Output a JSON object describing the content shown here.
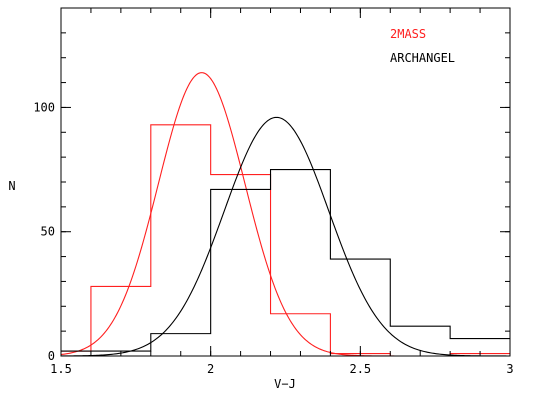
{
  "chart_data": {
    "type": "histogram",
    "xlabel": "V−J",
    "ylabel": "N",
    "xlim": [
      1.5,
      3.0
    ],
    "ylim": [
      0,
      140
    ],
    "x_ticks": [
      {
        "value": 1.5,
        "label": "1.5"
      },
      {
        "value": 2.0,
        "label": "2"
      },
      {
        "value": 2.5,
        "label": "2.5"
      },
      {
        "value": 3.0,
        "label": "3"
      }
    ],
    "y_ticks": [
      {
        "value": 0,
        "label": "0"
      },
      {
        "value": 50,
        "label": "50"
      },
      {
        "value": 100,
        "label": "100"
      }
    ],
    "legend_placement": "top-right",
    "series": [
      {
        "name": "2MASS",
        "color": "#ff2020",
        "bin_edges": [
          1.5,
          1.6,
          1.8,
          2.0,
          2.2,
          2.4,
          2.6,
          2.8,
          3.0
        ],
        "counts": [
          2,
          28,
          93,
          73,
          17,
          1,
          0,
          1
        ],
        "fit": {
          "kind": "gaussian",
          "peak": 114,
          "center": 1.97,
          "sigma": 0.145
        }
      },
      {
        "name": "ARCHANGEL",
        "color": "#000000",
        "bin_edges": [
          1.5,
          1.8,
          2.0,
          2.2,
          2.4,
          2.6,
          2.8,
          3.0
        ],
        "counts": [
          2,
          9,
          67,
          75,
          39,
          12,
          7
        ],
        "fit": {
          "kind": "gaussian",
          "peak": 96,
          "center": 2.22,
          "sigma": 0.175
        }
      }
    ]
  }
}
